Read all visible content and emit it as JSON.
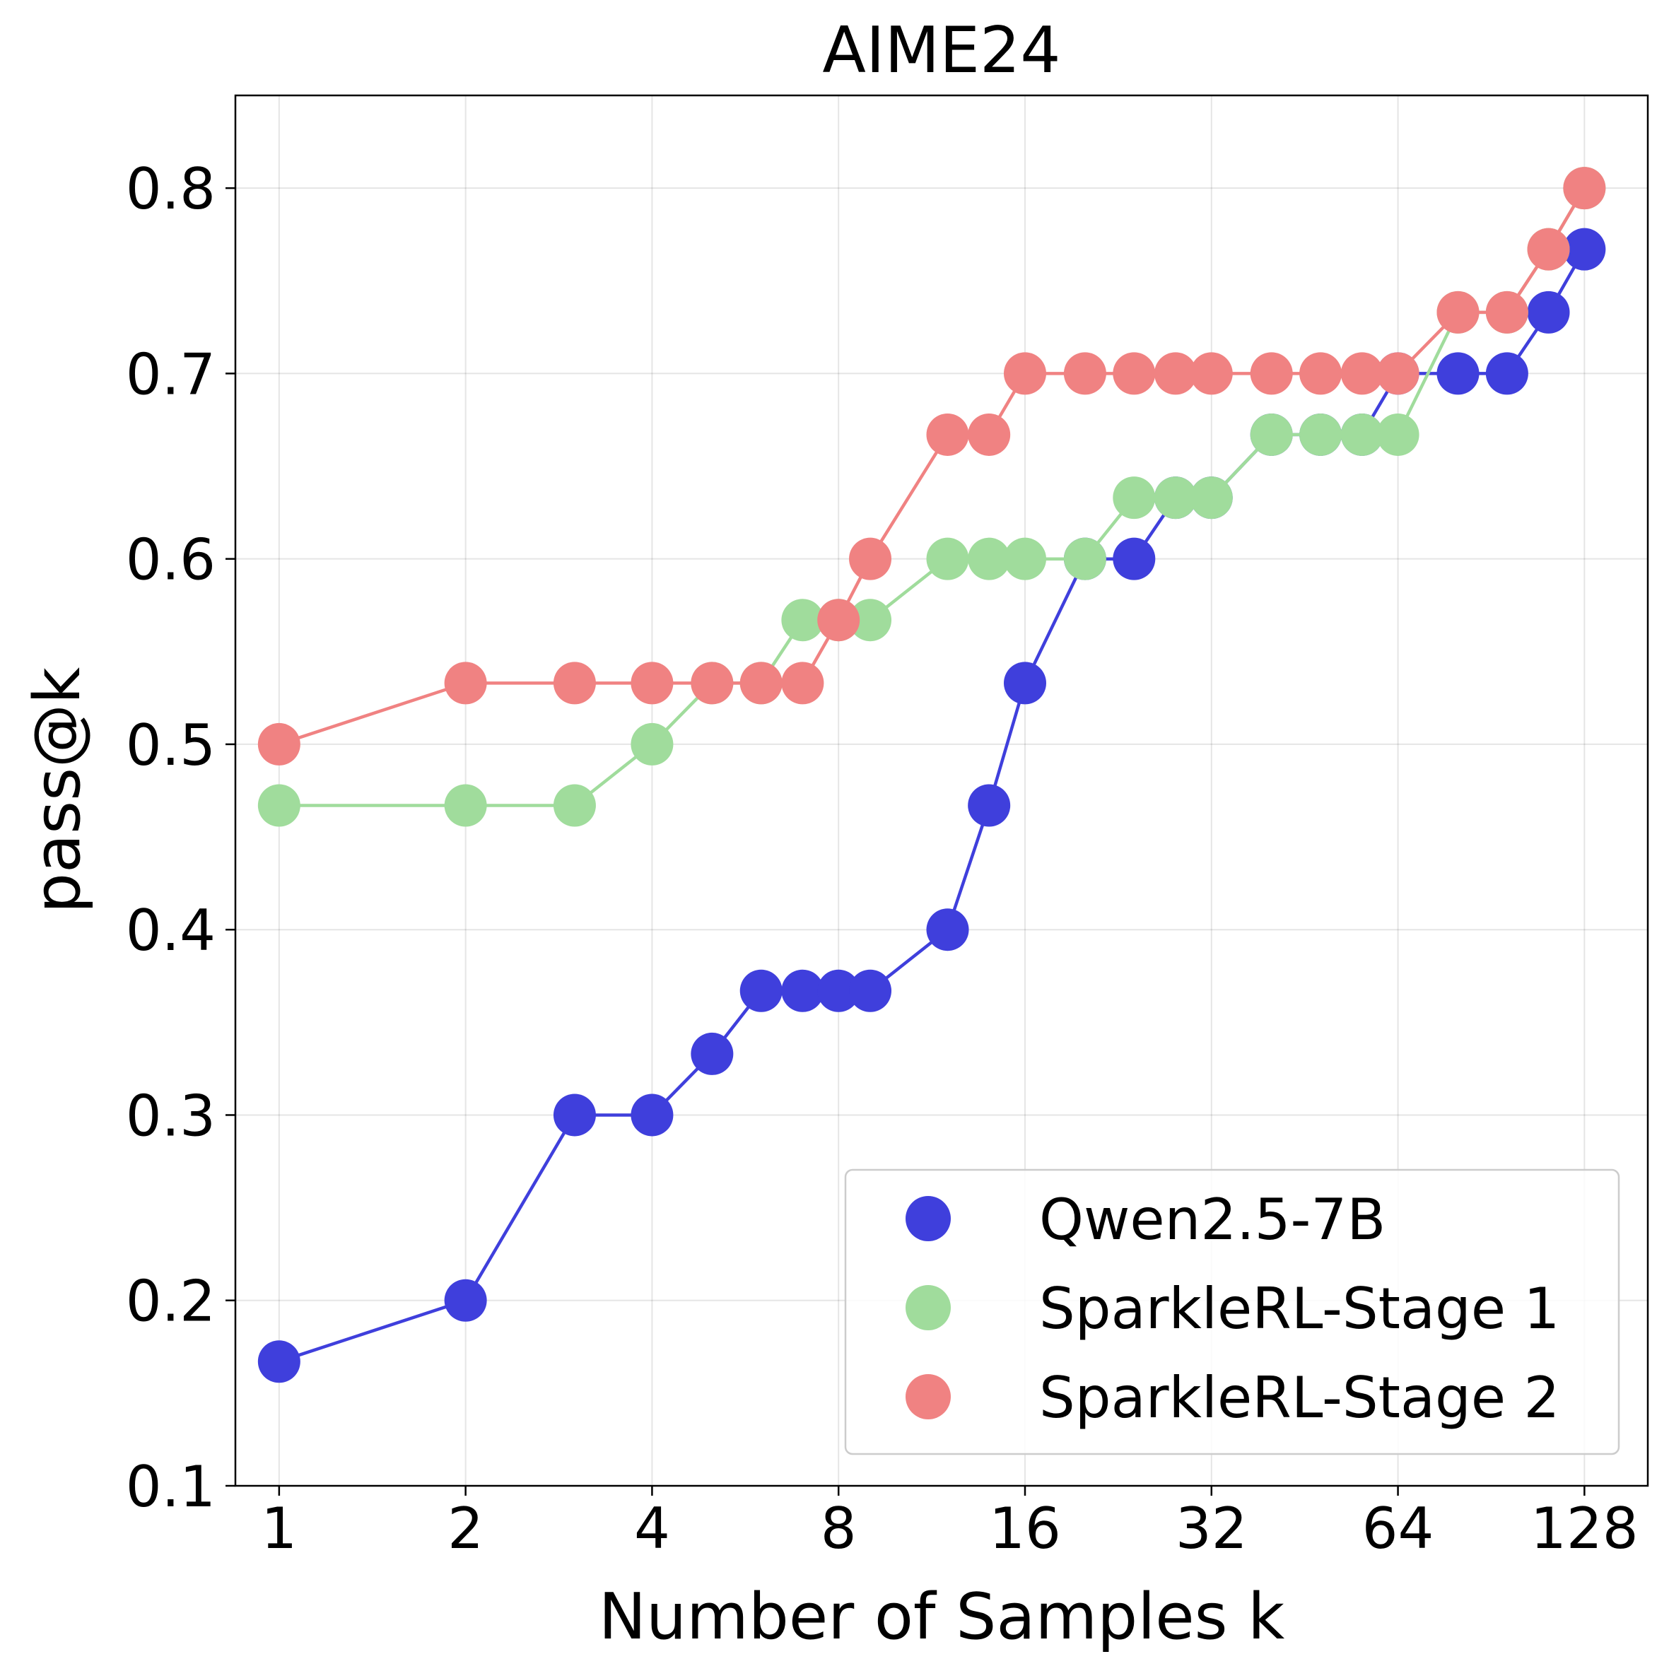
{
  "chart_data": {
    "type": "line",
    "title": "AIME24",
    "xlabel": "Number of Samples k",
    "ylabel": "pass@k",
    "x_scale": "log2",
    "xlim": [
      0.85,
      162
    ],
    "ylim": [
      0.1,
      0.85
    ],
    "grid": true,
    "legend_position": "lower-right",
    "x_ticks": [
      1,
      2,
      4,
      8,
      16,
      32,
      64,
      128
    ],
    "x_tick_labels": [
      "1",
      "2",
      "4",
      "8",
      "16",
      "32",
      "64",
      "128"
    ],
    "y_ticks": [
      0.1,
      0.2,
      0.3,
      0.4,
      0.5,
      0.6,
      0.7,
      0.8
    ],
    "y_tick_labels": [
      "0.1",
      "0.2",
      "0.3",
      "0.4",
      "0.5",
      "0.6",
      "0.7",
      "0.8"
    ],
    "x": [
      1,
      2,
      3,
      4,
      5,
      6,
      7,
      8,
      9,
      12,
      14,
      16,
      20,
      24,
      28,
      32,
      40,
      48,
      56,
      64,
      80,
      96,
      112,
      128
    ],
    "series": [
      {
        "name": "Qwen2.5-7B",
        "color": "#3f3fdc",
        "values": [
          0.167,
          0.2,
          0.3,
          0.3,
          0.333,
          0.367,
          0.367,
          0.367,
          0.367,
          0.4,
          0.467,
          0.533,
          0.6,
          0.6,
          0.633,
          0.633,
          0.667,
          0.667,
          0.667,
          0.7,
          0.7,
          0.7,
          0.733,
          0.767
        ]
      },
      {
        "name": "SparkleRL-Stage 1",
        "color": "#a0dc9c",
        "values": [
          0.467,
          0.467,
          0.467,
          0.5,
          0.533,
          0.533,
          0.567,
          0.567,
          0.567,
          0.6,
          0.6,
          0.6,
          0.6,
          0.633,
          0.633,
          0.633,
          0.667,
          0.667,
          0.667,
          0.667,
          0.733,
          0.733,
          0.767,
          0.8
        ]
      },
      {
        "name": "SparkleRL-Stage 2",
        "color": "#f08282",
        "values": [
          0.5,
          0.533,
          0.533,
          0.533,
          0.533,
          0.533,
          0.533,
          0.567,
          0.6,
          0.667,
          0.667,
          0.7,
          0.7,
          0.7,
          0.7,
          0.7,
          0.7,
          0.7,
          0.7,
          0.7,
          0.733,
          0.733,
          0.767,
          0.8
        ]
      }
    ]
  }
}
